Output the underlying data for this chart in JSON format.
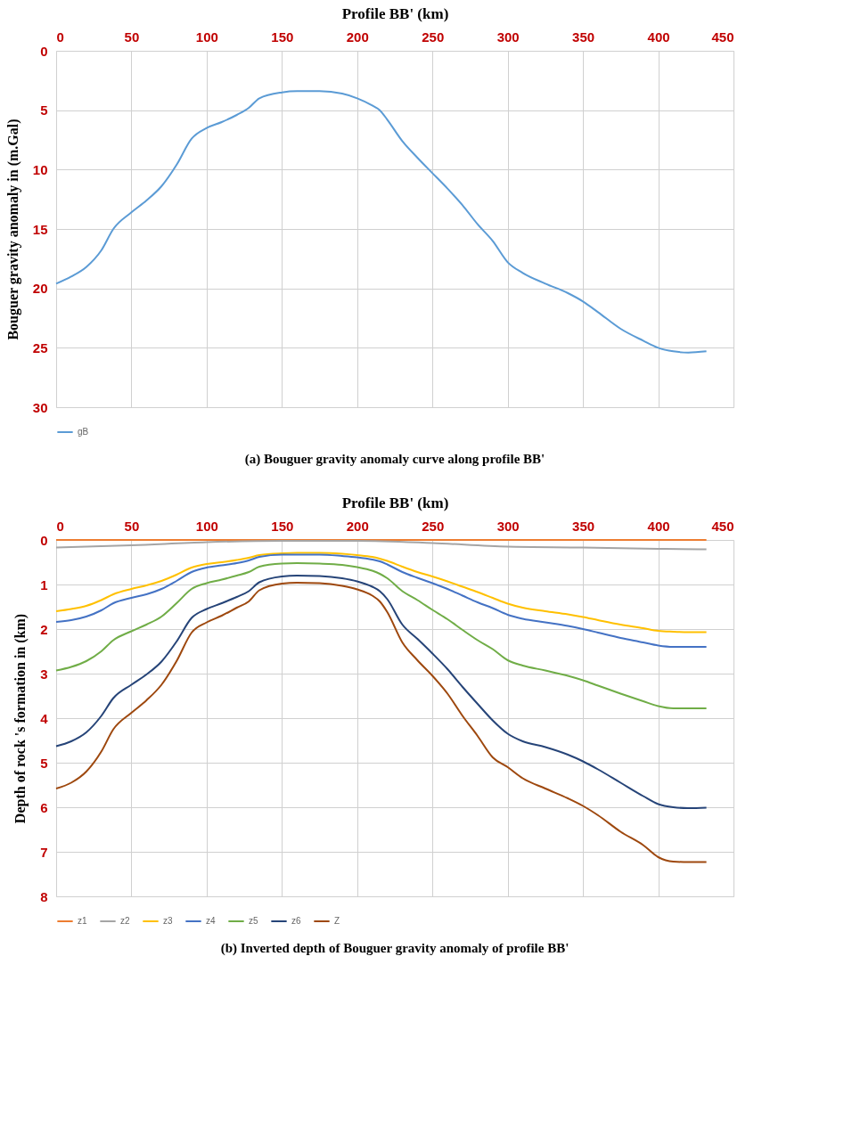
{
  "chart_data": [
    {
      "type": "line",
      "xlabel": "Profile BB' (km)",
      "ylabel": "Bouguer gravity anomaly in (m.Gal)",
      "xlim": [
        0,
        450
      ],
      "xticks": [
        0,
        50,
        100,
        150,
        200,
        250,
        300,
        350,
        400,
        450
      ],
      "ylim": [
        30,
        0
      ],
      "yticks": [
        0,
        5,
        10,
        15,
        20,
        25,
        30
      ],
      "grid": true,
      "legend": "bottom",
      "marker": "none",
      "line_style": "solid",
      "annotations": [
        "(a) Bouguer gravity anomaly curve along profile BB'"
      ],
      "x": [
        0,
        10,
        20,
        30,
        38,
        50,
        60,
        70,
        80,
        90,
        100,
        110,
        120,
        128,
        135,
        150,
        160,
        175,
        190,
        200,
        210,
        215,
        220,
        230,
        240,
        250,
        260,
        270,
        280,
        290,
        300,
        310,
        325,
        340,
        350,
        360,
        375,
        390,
        400,
        410,
        420,
        432
      ],
      "series": [
        {
          "name": "gB",
          "color": "#5b9bd5",
          "values": [
            19.6,
            19.0,
            18.2,
            16.8,
            15.0,
            13.6,
            12.6,
            11.4,
            9.6,
            7.4,
            6.5,
            6.0,
            5.4,
            4.8,
            4.0,
            3.5,
            3.4,
            3.4,
            3.6,
            4.0,
            4.6,
            5.0,
            5.8,
            7.6,
            9.0,
            10.3,
            11.6,
            13.0,
            14.6,
            16.0,
            17.8,
            18.7,
            19.6,
            20.4,
            21.1,
            22.0,
            23.4,
            24.4,
            25.0,
            25.3,
            25.4,
            25.3
          ]
        }
      ]
    },
    {
      "type": "line",
      "xlabel": "Profile BB' (km)",
      "ylabel": "Depth of rock 's formation in (km)",
      "xlim": [
        0,
        450
      ],
      "xticks": [
        0,
        50,
        100,
        150,
        200,
        250,
        300,
        350,
        400,
        450
      ],
      "ylim": [
        8,
        0
      ],
      "yticks": [
        0,
        1,
        2,
        3,
        4,
        5,
        6,
        7,
        8
      ],
      "grid": true,
      "legend": "bottom",
      "marker": "none",
      "line_style": "solid",
      "annotations": [
        "(b) Inverted depth of Bouguer gravity anomaly of profile BB'"
      ],
      "x": [
        0,
        10,
        20,
        30,
        38,
        50,
        60,
        70,
        80,
        90,
        100,
        110,
        120,
        128,
        135,
        150,
        160,
        175,
        190,
        200,
        210,
        215,
        220,
        230,
        240,
        250,
        260,
        270,
        280,
        290,
        300,
        310,
        325,
        340,
        350,
        360,
        375,
        390,
        400,
        410,
        420,
        432
      ],
      "series": [
        {
          "name": "z1",
          "color": "#ed7d31",
          "x": [
            0,
            432
          ],
          "values": [
            0,
            0
          ]
        },
        {
          "name": "z2",
          "color": "#a5a5a5",
          "x": [
            0,
            50,
            100,
            150,
            200,
            250,
            300,
            350,
            400,
            432
          ],
          "values": [
            0.17,
            0.12,
            0.05,
            0.02,
            0.02,
            0.07,
            0.15,
            0.17,
            0.2,
            0.21
          ]
        },
        {
          "name": "z3",
          "color": "#ffc000",
          "values": [
            1.6,
            1.55,
            1.48,
            1.35,
            1.22,
            1.1,
            1.02,
            0.92,
            0.78,
            0.62,
            0.54,
            0.5,
            0.45,
            0.4,
            0.34,
            0.3,
            0.29,
            0.29,
            0.31,
            0.34,
            0.38,
            0.42,
            0.47,
            0.6,
            0.72,
            0.82,
            0.93,
            1.05,
            1.17,
            1.3,
            1.43,
            1.52,
            1.6,
            1.67,
            1.73,
            1.8,
            1.9,
            1.98,
            2.04,
            2.06,
            2.07,
            2.07
          ]
        },
        {
          "name": "z4",
          "color": "#4472c4",
          "values": [
            1.84,
            1.8,
            1.72,
            1.58,
            1.42,
            1.3,
            1.22,
            1.1,
            0.92,
            0.72,
            0.62,
            0.57,
            0.52,
            0.46,
            0.38,
            0.33,
            0.33,
            0.33,
            0.36,
            0.39,
            0.44,
            0.48,
            0.55,
            0.72,
            0.85,
            0.97,
            1.1,
            1.25,
            1.4,
            1.53,
            1.68,
            1.77,
            1.85,
            1.93,
            2.0,
            2.08,
            2.2,
            2.3,
            2.37,
            2.4,
            2.4,
            2.4
          ]
        },
        {
          "name": "z5",
          "color": "#70ad47",
          "values": [
            2.93,
            2.85,
            2.72,
            2.5,
            2.25,
            2.05,
            1.9,
            1.72,
            1.42,
            1.1,
            0.97,
            0.89,
            0.8,
            0.72,
            0.6,
            0.53,
            0.52,
            0.53,
            0.56,
            0.61,
            0.69,
            0.76,
            0.86,
            1.15,
            1.35,
            1.57,
            1.78,
            2.02,
            2.25,
            2.45,
            2.7,
            2.82,
            2.93,
            3.05,
            3.15,
            3.27,
            3.45,
            3.62,
            3.73,
            3.78,
            3.78,
            3.78
          ]
        },
        {
          "name": "z6",
          "color": "#264478",
          "values": [
            4.63,
            4.52,
            4.32,
            3.95,
            3.55,
            3.25,
            3.02,
            2.73,
            2.28,
            1.75,
            1.55,
            1.42,
            1.28,
            1.15,
            0.95,
            0.82,
            0.8,
            0.81,
            0.86,
            0.93,
            1.05,
            1.15,
            1.33,
            1.9,
            2.22,
            2.55,
            2.9,
            3.3,
            3.68,
            4.05,
            4.35,
            4.52,
            4.65,
            4.82,
            4.97,
            5.15,
            5.45,
            5.75,
            5.93,
            6.0,
            6.02,
            6.01
          ]
        },
        {
          "name": "Z",
          "color": "#9e480e",
          "values": [
            5.58,
            5.45,
            5.2,
            4.75,
            4.25,
            3.88,
            3.6,
            3.25,
            2.72,
            2.08,
            1.85,
            1.7,
            1.52,
            1.38,
            1.13,
            0.98,
            0.96,
            0.97,
            1.03,
            1.11,
            1.25,
            1.38,
            1.62,
            2.3,
            2.7,
            3.05,
            3.45,
            3.95,
            4.4,
            4.88,
            5.1,
            5.35,
            5.58,
            5.8,
            5.97,
            6.18,
            6.55,
            6.85,
            7.12,
            7.22,
            7.23,
            7.23
          ]
        }
      ]
    }
  ]
}
